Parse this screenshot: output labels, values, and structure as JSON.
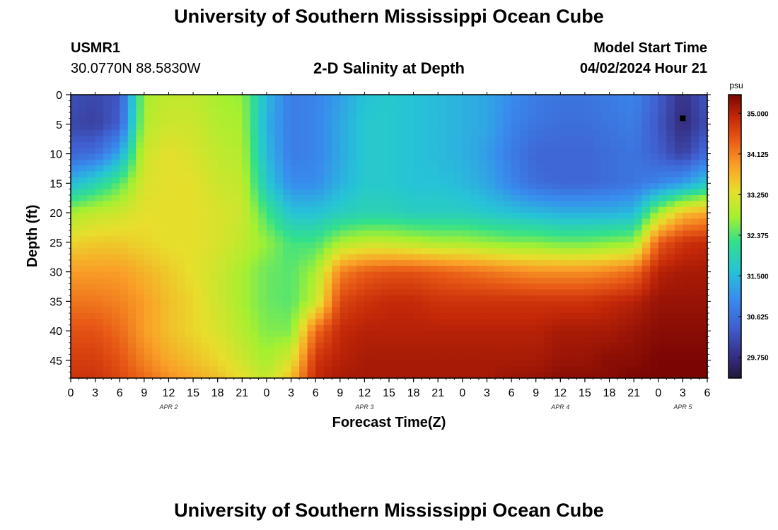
{
  "header": {
    "title": "University of Southern Mississippi Ocean Cube",
    "station_id": "USMR1",
    "station_coords": "30.0770N  88.5830W",
    "chart_title": "2-D Salinity at Depth",
    "model_start_label": "Model Start Time",
    "model_start_value": "04/02/2024 Hour 21"
  },
  "footer": {
    "title": "University of Southern Mississippi Ocean Cube"
  },
  "chart_data": {
    "type": "heatmap",
    "title": "2-D Salinity at Depth",
    "xlabel": "Forecast Time(Z)",
    "ylabel": "Depth (ft)",
    "x_range_hours": [
      0,
      78
    ],
    "x_ticks": [
      "0",
      "3",
      "6",
      "9",
      "12",
      "15",
      "18",
      "21",
      "0",
      "3",
      "6",
      "9",
      "12",
      "15",
      "18",
      "21",
      "0",
      "3",
      "6",
      "9",
      "12",
      "15",
      "18",
      "21",
      "0",
      "3",
      "6"
    ],
    "day_labels": [
      {
        "label": "APR 2",
        "hour": 12
      },
      {
        "label": "APR 3",
        "hour": 36
      },
      {
        "label": "APR 4",
        "hour": 60
      },
      {
        "label": "APR 5",
        "hour": 75
      }
    ],
    "y_range_ft": [
      0,
      48
    ],
    "y_reversed": true,
    "y_ticks": [
      0,
      5,
      10,
      15,
      20,
      25,
      30,
      35,
      40,
      45
    ],
    "colorbar": {
      "unit": "psu",
      "range": [
        29.3,
        35.4
      ],
      "ticks": [
        "35.000",
        "34.125",
        "33.250",
        "32.375",
        "31.500",
        "30.625",
        "29.750"
      ],
      "tick_values": [
        35.0,
        34.125,
        33.25,
        32.375,
        31.5,
        30.625,
        29.75
      ]
    },
    "marker": {
      "hour": 75,
      "depth_ft": 4
    },
    "depths_ft": [
      0,
      5,
      10,
      15,
      20,
      25,
      30,
      35,
      40,
      45,
      48
    ],
    "times_h": [
      0,
      3,
      6,
      9,
      12,
      15,
      18,
      21,
      24,
      27,
      30,
      33,
      36,
      39,
      42,
      45,
      48,
      51,
      54,
      57,
      60,
      63,
      66,
      69,
      72,
      75,
      78
    ],
    "values": [
      [
        30.2,
        30.1,
        30.3,
        32.8,
        33.0,
        33.0,
        32.8,
        32.7,
        31.5,
        30.8,
        30.9,
        31.2,
        31.6,
        31.7,
        31.6,
        31.5,
        31.4,
        31.3,
        31.0,
        30.8,
        30.7,
        30.7,
        30.8,
        30.9,
        30.4,
        29.8,
        30.3
      ],
      [
        30.1,
        30.0,
        30.4,
        32.9,
        33.1,
        33.1,
        32.9,
        32.8,
        31.4,
        30.8,
        30.9,
        31.3,
        31.7,
        31.7,
        31.6,
        31.5,
        31.4,
        31.3,
        30.9,
        30.7,
        30.6,
        30.6,
        30.7,
        30.8,
        30.3,
        29.7,
        30.2
      ],
      [
        30.5,
        30.6,
        31.3,
        33.1,
        33.3,
        33.2,
        33.0,
        32.9,
        31.5,
        30.8,
        30.9,
        31.3,
        31.7,
        31.7,
        31.6,
        31.5,
        31.4,
        31.2,
        30.8,
        30.5,
        30.5,
        30.5,
        30.6,
        30.7,
        30.4,
        30.0,
        30.6
      ],
      [
        31.5,
        31.9,
        32.4,
        33.2,
        33.3,
        33.3,
        33.1,
        33.0,
        31.7,
        31.0,
        31.0,
        31.4,
        31.7,
        31.7,
        31.6,
        31.6,
        31.5,
        31.3,
        30.9,
        30.6,
        30.5,
        30.5,
        30.6,
        30.7,
        30.9,
        31.2,
        31.7
      ],
      [
        32.8,
        33.0,
        33.1,
        33.3,
        33.3,
        33.3,
        33.2,
        33.1,
        32.3,
        31.6,
        31.6,
        31.8,
        31.9,
        31.9,
        31.8,
        31.8,
        31.8,
        31.7,
        31.6,
        31.5,
        31.4,
        31.4,
        31.4,
        31.5,
        32.8,
        33.6,
        33.8
      ],
      [
        33.4,
        33.5,
        33.5,
        33.4,
        33.3,
        33.3,
        33.2,
        33.0,
        32.7,
        32.3,
        32.3,
        32.8,
        33.0,
        33.0,
        32.9,
        32.8,
        32.8,
        32.7,
        32.6,
        32.6,
        32.5,
        32.5,
        32.6,
        32.7,
        34.4,
        34.8,
        34.9
      ],
      [
        33.9,
        33.9,
        33.9,
        33.7,
        33.5,
        33.3,
        33.1,
        32.8,
        32.5,
        32.4,
        32.8,
        34.1,
        34.4,
        34.5,
        34.5,
        34.4,
        34.3,
        34.2,
        34.1,
        34.0,
        34.0,
        34.0,
        34.1,
        34.3,
        35.0,
        35.1,
        35.1
      ],
      [
        34.2,
        34.2,
        34.1,
        33.9,
        33.6,
        33.4,
        33.1,
        32.8,
        32.5,
        32.4,
        33.0,
        34.6,
        34.8,
        34.9,
        34.9,
        34.8,
        34.8,
        34.8,
        34.8,
        34.8,
        34.8,
        34.8,
        34.9,
        35.0,
        35.2,
        35.2,
        35.2
      ],
      [
        34.5,
        34.5,
        34.3,
        33.9,
        33.6,
        33.4,
        33.2,
        32.9,
        32.6,
        32.6,
        34.3,
        34.9,
        35.0,
        35.0,
        35.0,
        35.0,
        35.0,
        35.0,
        35.0,
        35.0,
        35.1,
        35.1,
        35.1,
        35.2,
        35.3,
        35.3,
        35.3
      ],
      [
        34.7,
        34.7,
        34.5,
        34.1,
        33.8,
        33.6,
        33.4,
        33.1,
        32.8,
        33.2,
        34.8,
        35.0,
        35.1,
        35.1,
        35.1,
        35.1,
        35.1,
        35.1,
        35.1,
        35.1,
        35.2,
        35.2,
        35.3,
        35.3,
        35.4,
        35.4,
        35.4
      ],
      [
        34.8,
        34.8,
        34.6,
        34.3,
        34.0,
        33.8,
        33.6,
        33.3,
        33.0,
        33.6,
        34.9,
        35.1,
        35.1,
        35.1,
        35.1,
        35.1,
        35.1,
        35.1,
        35.2,
        35.2,
        35.3,
        35.3,
        35.3,
        35.4,
        35.4,
        35.4,
        35.4
      ]
    ]
  }
}
